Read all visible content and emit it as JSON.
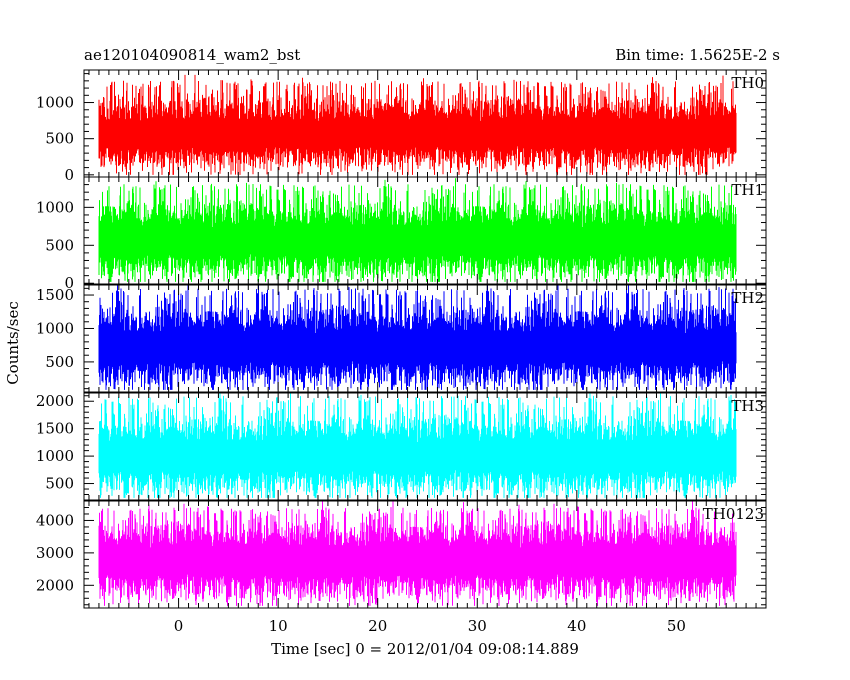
{
  "header": {
    "left_title": "ae120104090814_wam2_bst",
    "right_title": "Bin time: 1.5625E-2 s"
  },
  "ylabel": "Counts/sec",
  "xlabel": "Time [sec] 0 = 2012/01/04 09:08:14.889",
  "chart_data": {
    "type": "line",
    "title": "ae120104090814_wam2_bst",
    "subtitle": "Bin time: 1.5625E-2 s",
    "xlabel": "Time [sec] 0 = 2012/01/04 09:08:14.889",
    "ylabel": "Counts/sec",
    "xlim": [
      -9.5,
      59
    ],
    "x_ticks": [
      0,
      10,
      20,
      30,
      40,
      50
    ],
    "data_x_range": [
      -8,
      56
    ],
    "bin_time_s": 0.015625,
    "grid": false,
    "panels": [
      {
        "name": "TH0",
        "color": "#ff0000",
        "ylim": [
          -30,
          1450
        ],
        "y_ticks": [
          0,
          500,
          1000
        ],
        "y_ticks_minor": 100,
        "mean": 570,
        "min_typical": 100,
        "max_typical": 1300
      },
      {
        "name": "TH1",
        "color": "#00ff00",
        "ylim": [
          -10,
          1400
        ],
        "y_ticks": [
          0,
          500,
          1000
        ],
        "y_ticks_minor": 100,
        "mean": 560,
        "min_typical": 80,
        "max_typical": 1310
      },
      {
        "name": "TH2",
        "color": "#0000ff",
        "ylim": [
          50,
          1650
        ],
        "y_ticks": [
          500,
          1000,
          1500
        ],
        "y_ticks_minor": 100,
        "mean": 720,
        "min_typical": 150,
        "max_typical": 1600
      },
      {
        "name": "TH3",
        "color": "#00ffff",
        "ylim": [
          200,
          2150
        ],
        "y_ticks": [
          500,
          1000,
          1500,
          2000
        ],
        "y_ticks_minor": 100,
        "mean": 1000,
        "min_typical": 350,
        "max_typical": 2100
      },
      {
        "name": "TH0123",
        "color": "#ff00ff",
        "ylim": [
          1300,
          4600
        ],
        "y_ticks": [
          2000,
          3000,
          4000
        ],
        "y_ticks_minor": 200,
        "mean": 2750,
        "min_typical": 1550,
        "max_typical": 4400
      }
    ]
  }
}
